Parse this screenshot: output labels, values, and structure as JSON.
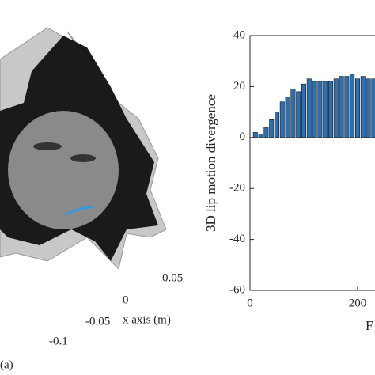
{
  "left_panel": {
    "tick_labels": [
      "0.05",
      "0",
      "-0.05",
      "-0.1"
    ],
    "axis_label": "x axis (m)",
    "panel_label": "(a)"
  },
  "chart_data": {
    "type": "bar",
    "y_label": "3D lip motion divergence",
    "x_label": "F",
    "x": [
      10,
      20,
      30,
      40,
      50,
      60,
      70,
      80,
      90,
      100,
      110,
      120,
      130,
      140,
      150,
      160,
      170,
      180,
      190,
      200,
      210,
      220,
      230
    ],
    "values": [
      2,
      1,
      4,
      7,
      10,
      14,
      16,
      19,
      18,
      21,
      23,
      22,
      22,
      22,
      22,
      23,
      24,
      24,
      25,
      23,
      24,
      23,
      23
    ],
    "color": "#2f6fb0",
    "xlim": [
      0,
      250
    ],
    "xticks": [
      0,
      200
    ],
    "ylim": [
      -60,
      40
    ],
    "yticks": [
      -60,
      -40,
      -20,
      0,
      20,
      40
    ]
  }
}
